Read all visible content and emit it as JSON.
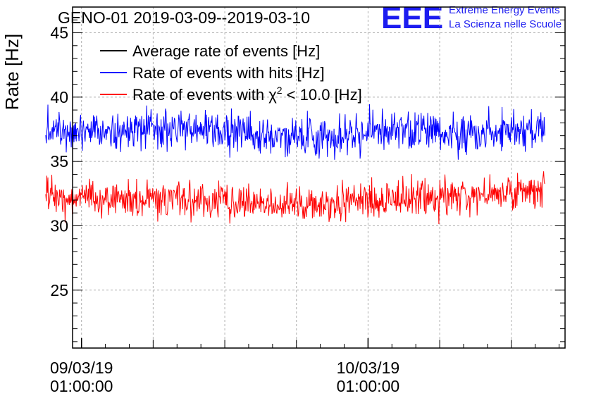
{
  "title": "GENO-01 2019-03-09--2019-03-10",
  "logo": {
    "mark": "EEE",
    "line1": "Extreme Energy Events",
    "line2": "La Scienza nelle Scuole",
    "color": "#1c1cf0"
  },
  "chart_data": {
    "type": "line",
    "title": "GENO-01 2019-03-09--2019-03-10",
    "ylabel": "Rate [Hz]",
    "xlabel": "",
    "ylim": [
      20.5,
      47
    ],
    "xlim_hours": [
      -0.75,
      40.5
    ],
    "yticks": [
      25,
      30,
      35,
      40,
      45
    ],
    "xticks": [
      {
        "date": "09/03/19",
        "time": "01:00:00",
        "hour": 0
      },
      {
        "date": "10/03/19",
        "time": "01:00:00",
        "hour": 24
      }
    ],
    "grid": true,
    "legend_position": "top-left",
    "series": [
      {
        "name": "Average rate of events [Hz]",
        "color": "#000000",
        "values": []
      },
      {
        "name": "Rate of events with hits [Hz]",
        "color": "#0000ff",
        "x_range_hours": [
          -3.0,
          38.8
        ],
        "mean_profile": [
          37.6,
          37.6,
          37.5,
          37.4,
          37.3,
          37.4,
          37.5,
          37.4,
          37.2,
          37.0,
          36.8,
          37.0,
          37.2,
          37.3,
          37.4,
          37.3,
          37.2,
          37.3,
          37.4,
          37.5
        ],
        "spread": 1.1,
        "min": 34.9,
        "max": 39.8
      },
      {
        "name": "Rate of events with χ² < 10.0 [Hz]",
        "legend_main": "Rate of events with χ",
        "legend_sup": "2",
        "legend_tail": " < 10.0 [Hz]",
        "color": "#ff0000",
        "x_range_hours": [
          -3.0,
          38.8
        ],
        "mean_profile": [
          32.3,
          32.2,
          32.1,
          32.1,
          32.0,
          32.0,
          31.9,
          31.9,
          31.8,
          31.7,
          31.6,
          31.7,
          31.9,
          32.0,
          32.2,
          32.3,
          32.4,
          32.5,
          32.6,
          32.7
        ],
        "spread": 1.0,
        "min": 29.3,
        "max": 34.3
      }
    ]
  }
}
